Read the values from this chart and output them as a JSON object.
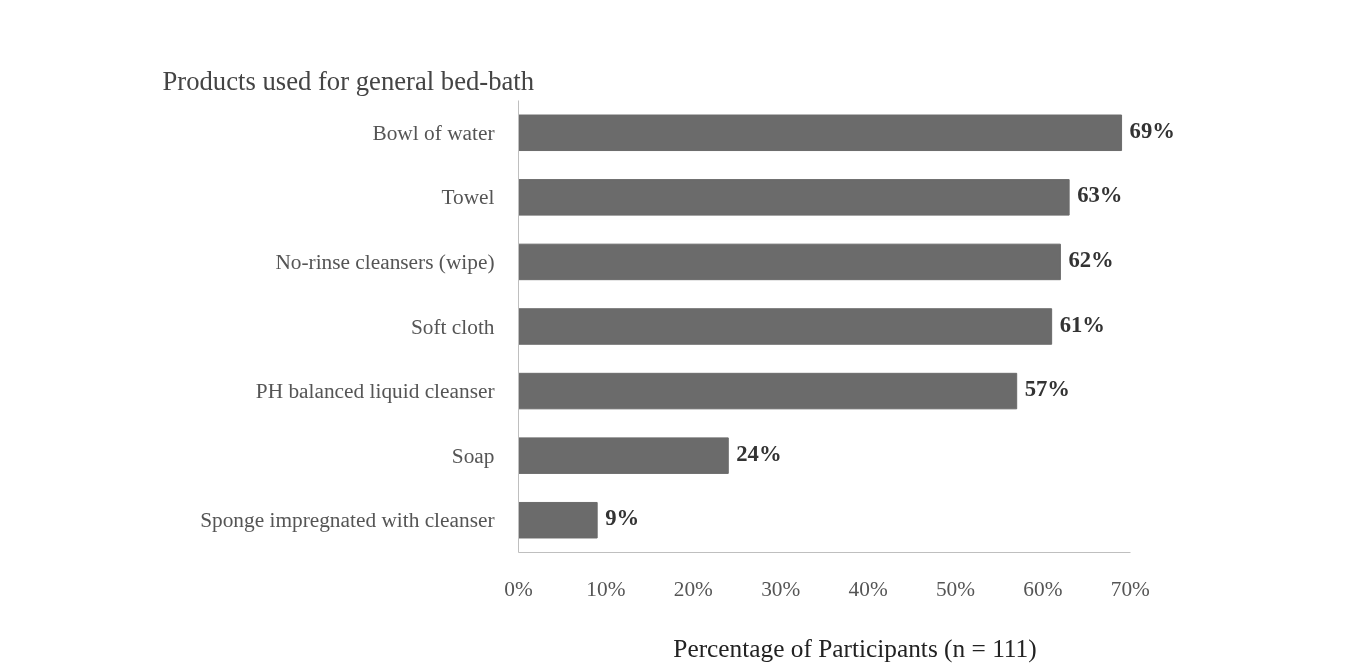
{
  "chart_data": {
    "type": "bar",
    "orientation": "horizontal",
    "title": "Products used for general bed-bath",
    "xlabel": "Percentage of Participants (n = 111)",
    "categories": [
      "Bowl of water",
      "Towel",
      "No-rinse cleansers (wipe)",
      "Soft cloth",
      "PH balanced liquid cleanser",
      "Soap",
      "Sponge impregnated with cleanser"
    ],
    "values": [
      69,
      63,
      62,
      61,
      57,
      24,
      9
    ],
    "value_labels": [
      "69%",
      "63%",
      "62%",
      "61%",
      "57%",
      "24%",
      "9%"
    ],
    "color": "#6b6b6b",
    "xlim": [
      0,
      70
    ],
    "xticks": [
      {
        "value": 0,
        "label": "0%"
      },
      {
        "value": 10,
        "label": "10%"
      },
      {
        "value": 20,
        "label": "20%"
      },
      {
        "value": 30,
        "label": "30%"
      },
      {
        "value": 40,
        "label": "40%"
      },
      {
        "value": 50,
        "label": "50%"
      },
      {
        "value": 60,
        "label": "60%"
      },
      {
        "value": 70,
        "label": "70%"
      }
    ],
    "grid": false
  }
}
